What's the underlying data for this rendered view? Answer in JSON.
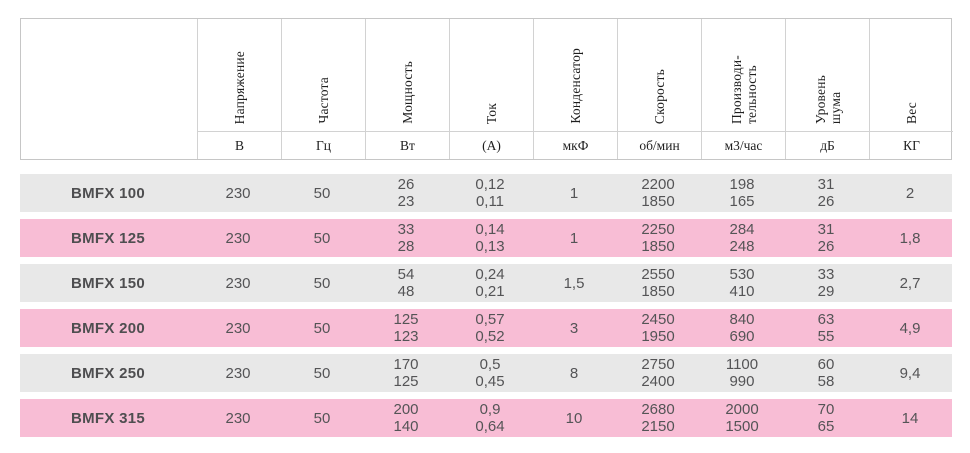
{
  "colors": {
    "row_gray": "#e8e8e8",
    "row_pink": "#f8bdd5",
    "border": "#c6c6c6",
    "data_text": "#545456",
    "header_text": "#1e1e1e"
  },
  "table": {
    "columns": [
      {
        "label": "Напряжение",
        "unit": "В"
      },
      {
        "label": "Частота",
        "unit": "Гц"
      },
      {
        "label": "Мощность",
        "unit": "Вт"
      },
      {
        "label": "Ток",
        "unit": "(А)"
      },
      {
        "label": "Конденсатор",
        "unit": "мкФ"
      },
      {
        "label": "Скорость",
        "unit": "об/мин"
      },
      {
        "label": "Производи-\nтельность",
        "unit": "м3/час"
      },
      {
        "label": "Уровень\nшума",
        "unit": "дБ"
      },
      {
        "label": "Вес",
        "unit": "КГ"
      }
    ],
    "rows": [
      {
        "model": "BMFX 100",
        "values": [
          "230",
          "50",
          "26\n23",
          "0,12\n0,11",
          "1",
          "2200\n1850",
          "198\n165",
          "31\n26",
          "2"
        ]
      },
      {
        "model": "BMFX 125",
        "values": [
          "230",
          "50",
          "33\n28",
          "0,14\n0,13",
          "1",
          "2250\n1850",
          "284\n248",
          "31\n26",
          "1,8"
        ]
      },
      {
        "model": "BMFX 150",
        "values": [
          "230",
          "50",
          "54\n48",
          "0,24\n0,21",
          "1,5",
          "2550\n1850",
          "530\n410",
          "33\n29",
          "2,7"
        ]
      },
      {
        "model": "BMFX 200",
        "values": [
          "230",
          "50",
          "125\n123",
          "0,57\n0,52",
          "3",
          "2450\n1950",
          "840\n690",
          "63\n55",
          "4,9"
        ]
      },
      {
        "model": "BMFX 250",
        "values": [
          "230",
          "50",
          "170\n125",
          "0,5\n0,45",
          "8",
          "2750\n2400",
          "1100\n990",
          "60\n58",
          "9,4"
        ]
      },
      {
        "model": "BMFX 315",
        "values": [
          "230",
          "50",
          "200\n140",
          "0,9\n0,64",
          "10",
          "2680\n2150",
          "2000\n1500",
          "70\n65",
          "14"
        ]
      }
    ]
  }
}
